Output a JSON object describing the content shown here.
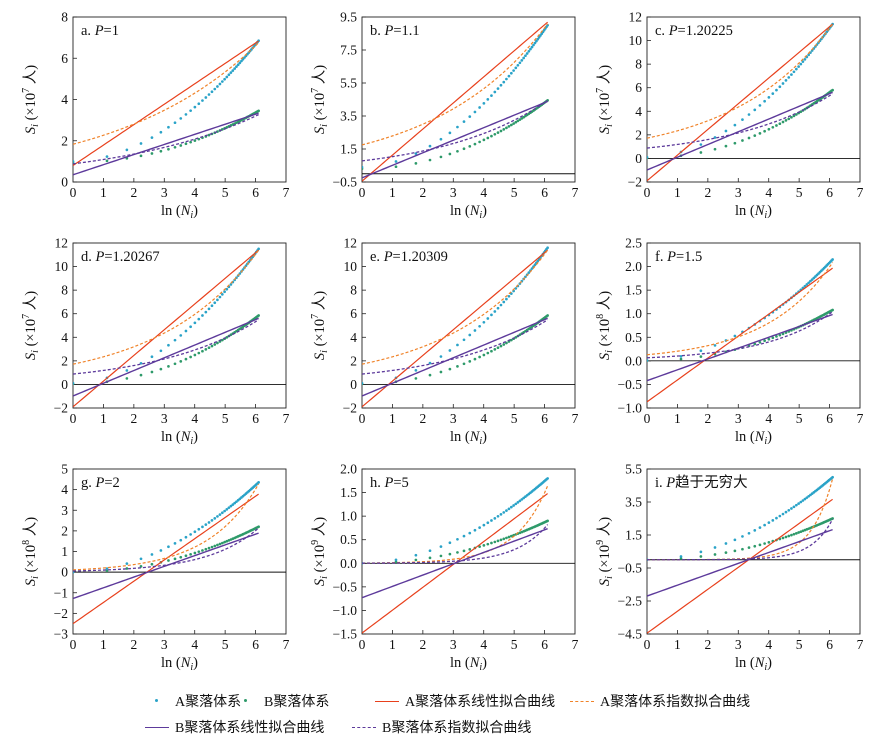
{
  "figure": {
    "xlabel_main": "ln",
    "xlabel_sub": "N",
    "xlabel_subscript": "i",
    "ylabel_main": "S",
    "ylabel_subscript": "i",
    "ylabel_person": "人",
    "colors": {
      "A_points": "#2aa3c8",
      "B_points": "#2e9a6a",
      "A_linear": "#e8401c",
      "A_exp": "#f0832a",
      "B_linear": "#5d3a9b",
      "B_exp": "#5d3a9b",
      "zero_line": "#111111"
    }
  },
  "legend": {
    "items": [
      {
        "key": "A_points",
        "label": "A聚落体系"
      },
      {
        "key": "B_points",
        "label": "B聚落体系"
      },
      {
        "key": "A_linear",
        "label": "A聚落体系线性拟合曲线"
      },
      {
        "key": "A_exp",
        "label": "A聚落体系指数拟合曲线"
      },
      {
        "key": "B_linear",
        "label": "B聚落体系线性拟合曲线"
      },
      {
        "key": "B_exp",
        "label": "B聚落体系指数拟合曲线"
      }
    ]
  },
  "chart_data": [
    {
      "type": "scatter",
      "panel_letter": "a.",
      "p_label": "P",
      "p_value": "=1",
      "exponent": "7",
      "x_range": [
        0,
        7
      ],
      "x_ticks": [
        "0",
        "1",
        "2",
        "3",
        "4",
        "5",
        "6",
        "7"
      ],
      "ylim": [
        0,
        8
      ],
      "y_ticks": [
        0,
        2,
        4,
        6,
        8
      ],
      "y_tick_labels": [
        "0",
        "2",
        "4",
        "6",
        "8"
      ],
      "A_scatter": {
        "start": 1.0,
        "end": 6.85
      },
      "B_scatter": {
        "start": 0.95,
        "end": 3.45
      },
      "A_linear": {
        "slope": 0.99,
        "intercept": 0.8
      },
      "A_exp": {
        "a": 1.83,
        "b": 0.214
      },
      "B_linear": {
        "slope": 0.49,
        "intercept": 0.35
      },
      "B_exp": {
        "a": 0.88,
        "b": 0.215
      }
    },
    {
      "type": "scatter",
      "panel_letter": "b.",
      "p_label": "P",
      "p_value": "=1.1",
      "exponent": "7",
      "x_range": [
        0,
        7
      ],
      "x_ticks": [
        "0",
        "1",
        "2",
        "3",
        "4",
        "5",
        "6",
        "7"
      ],
      "ylim": [
        -0.5,
        9.5
      ],
      "y_ticks": [
        -0.5,
        1.5,
        3.5,
        5.5,
        7.5,
        9.5
      ],
      "y_tick_labels": [
        "−0.5",
        "1.5",
        "3.5",
        "5.5",
        "7.5",
        "9.5"
      ],
      "A_scatter": {
        "start": 0.4,
        "end": 9.0
      },
      "B_scatter": {
        "start": 0.3,
        "end": 4.45
      },
      "A_linear": {
        "slope": 1.58,
        "intercept": -0.45
      },
      "A_exp": {
        "a": 1.75,
        "b": 0.27
      },
      "B_linear": {
        "slope": 0.76,
        "intercept": -0.25
      },
      "B_exp": {
        "a": 0.78,
        "b": 0.285
      }
    },
    {
      "type": "scatter",
      "panel_letter": "c.",
      "p_label": "P",
      "p_value": "=1.20225",
      "exponent": "7",
      "x_range": [
        0,
        7
      ],
      "x_ticks": [
        "0",
        "1",
        "2",
        "3",
        "4",
        "5",
        "6",
        "7"
      ],
      "ylim": [
        -2,
        12
      ],
      "y_ticks": [
        -2,
        0,
        2,
        4,
        6,
        8,
        10,
        12
      ],
      "y_tick_labels": [
        "−2",
        "0",
        "2",
        "4",
        "6",
        "8",
        "10",
        "12"
      ],
      "A_scatter": {
        "start": 0.1,
        "end": 11.4
      },
      "B_scatter": {
        "start": 0.05,
        "end": 5.8
      },
      "A_linear": {
        "slope": 2.18,
        "intercept": -1.9
      },
      "A_exp": {
        "a": 1.72,
        "b": 0.31
      },
      "B_linear": {
        "slope": 1.08,
        "intercept": -0.98
      },
      "B_exp": {
        "a": 0.88,
        "b": 0.3
      }
    },
    {
      "type": "scatter",
      "panel_letter": "d.",
      "p_label": "P",
      "p_value": "=1.20267",
      "exponent": "7",
      "x_range": [
        0,
        7
      ],
      "x_ticks": [
        "0",
        "1",
        "2",
        "3",
        "4",
        "5",
        "6",
        "7"
      ],
      "ylim": [
        -2,
        12
      ],
      "y_ticks": [
        -2,
        0,
        2,
        4,
        6,
        8,
        10,
        12
      ],
      "y_tick_labels": [
        "−2",
        "0",
        "2",
        "4",
        "6",
        "8",
        "10",
        "12"
      ],
      "A_scatter": {
        "start": 0.1,
        "end": 11.5
      },
      "B_scatter": {
        "start": 0.05,
        "end": 5.85
      },
      "A_linear": {
        "slope": 2.18,
        "intercept": -1.9
      },
      "A_exp": {
        "a": 1.72,
        "b": 0.31
      },
      "B_linear": {
        "slope": 1.08,
        "intercept": -0.98
      },
      "B_exp": {
        "a": 0.88,
        "b": 0.3
      }
    },
    {
      "type": "scatter",
      "panel_letter": "e.",
      "p_label": "P",
      "p_value": "=1.20309",
      "exponent": "7",
      "x_range": [
        0,
        7
      ],
      "x_ticks": [
        "0",
        "1",
        "2",
        "3",
        "4",
        "5",
        "6",
        "7"
      ],
      "ylim": [
        -2,
        12
      ],
      "y_ticks": [
        -2,
        0,
        2,
        4,
        6,
        8,
        10,
        12
      ],
      "y_tick_labels": [
        "−2",
        "0",
        "2",
        "4",
        "6",
        "8",
        "10",
        "12"
      ],
      "A_scatter": {
        "start": 0.1,
        "end": 11.6
      },
      "B_scatter": {
        "start": 0.05,
        "end": 5.85
      },
      "A_linear": {
        "slope": 2.18,
        "intercept": -1.9
      },
      "A_exp": {
        "a": 1.72,
        "b": 0.31
      },
      "B_linear": {
        "slope": 1.08,
        "intercept": -0.98
      },
      "B_exp": {
        "a": 0.88,
        "b": 0.3
      }
    },
    {
      "type": "scatter",
      "panel_letter": "f.",
      "p_label": "P",
      "p_value": "=1.5",
      "exponent": "8",
      "x_range": [
        0,
        7
      ],
      "x_ticks": [
        "0",
        "1",
        "2",
        "3",
        "4",
        "5",
        "6",
        "7"
      ],
      "ylim": [
        -1,
        2.5
      ],
      "y_ticks": [
        -1,
        -0.5,
        0,
        0.5,
        1,
        1.5,
        2,
        2.5
      ],
      "y_tick_labels": [
        "−1.0",
        "−0.5",
        "0.0",
        "0.5",
        "1.0",
        "1.5",
        "2.0",
        "2.5"
      ],
      "A_scatter": {
        "start": 0.01,
        "end": 2.15
      },
      "B_scatter": {
        "start": 0.005,
        "end": 1.08
      },
      "A_linear": {
        "slope": 0.465,
        "intercept": -0.87
      },
      "A_exp": {
        "a": 0.13,
        "b": 0.455
      },
      "B_linear": {
        "slope": 0.23,
        "intercept": -0.42
      },
      "B_exp": {
        "a": 0.065,
        "b": 0.455
      }
    },
    {
      "type": "scatter",
      "panel_letter": "g.",
      "p_label": "P",
      "p_value": "=2",
      "exponent": "8",
      "x_range": [
        0,
        7
      ],
      "x_ticks": [
        "0",
        "1",
        "2",
        "3",
        "4",
        "5",
        "6",
        "7"
      ],
      "ylim": [
        -3,
        5
      ],
      "y_ticks": [
        -3,
        -2,
        -1,
        0,
        1,
        2,
        3,
        4,
        5
      ],
      "y_tick_labels": [
        "−3",
        "−2",
        "−1",
        "0",
        "1",
        "2",
        "3",
        "4",
        "5"
      ],
      "A_scatter": {
        "start": 0.0,
        "end": 4.35
      },
      "B_scatter": {
        "start": 0.0,
        "end": 2.2
      },
      "A_linear": {
        "slope": 1.03,
        "intercept": -2.5
      },
      "A_exp": {
        "a": 0.11,
        "b": 0.6
      },
      "B_linear": {
        "slope": 0.52,
        "intercept": -1.28
      },
      "B_exp": {
        "a": 0.055,
        "b": 0.6
      }
    },
    {
      "type": "scatter",
      "panel_letter": "h.",
      "p_label": "P",
      "p_value": "=5",
      "exponent": "9",
      "x_range": [
        0,
        7
      ],
      "x_ticks": [
        "0",
        "1",
        "2",
        "3",
        "4",
        "5",
        "6",
        "7"
      ],
      "ylim": [
        -1.5,
        2
      ],
      "y_ticks": [
        -1.5,
        -1,
        -0.5,
        0,
        0.5,
        1,
        1.5,
        2
      ],
      "y_tick_labels": [
        "−1.5",
        "−1.0",
        "−0.5",
        "0.0",
        "0.5",
        "1.0",
        "1.5",
        "2.0"
      ],
      "A_scatter": {
        "start": 0.0,
        "end": 1.8
      },
      "B_scatter": {
        "start": 0.0,
        "end": 0.9
      },
      "A_linear": {
        "slope": 0.485,
        "intercept": -1.48
      },
      "A_exp": {
        "a": 0.005,
        "b": 0.95
      },
      "B_linear": {
        "slope": 0.24,
        "intercept": -0.73
      },
      "B_exp": {
        "a": 0.0025,
        "b": 0.95
      }
    },
    {
      "type": "scatter",
      "panel_letter": "i.",
      "p_label": "P",
      "p_value": "趋于无穷大",
      "exponent": "9",
      "x_range": [
        0,
        7
      ],
      "x_ticks": [
        "0",
        "1",
        "2",
        "3",
        "4",
        "5",
        "6",
        "7"
      ],
      "ylim": [
        -4.5,
        5.5
      ],
      "y_ticks": [
        -4.5,
        -2.5,
        -0.5,
        1.5,
        3.5,
        5.5
      ],
      "y_tick_labels": [
        "−4.5",
        "−2.5",
        "−0.5",
        "1.5",
        "3.5",
        "5.5"
      ],
      "A_scatter": {
        "start": 0.0,
        "end": 5.0
      },
      "B_scatter": {
        "start": 0.0,
        "end": 2.5
      },
      "A_linear": {
        "slope": 1.33,
        "intercept": -4.45
      },
      "A_exp": {
        "a": 0.0008,
        "b": 1.43
      },
      "B_linear": {
        "slope": 0.66,
        "intercept": -2.2
      },
      "B_exp": {
        "a": 0.0004,
        "b": 1.43
      }
    }
  ]
}
